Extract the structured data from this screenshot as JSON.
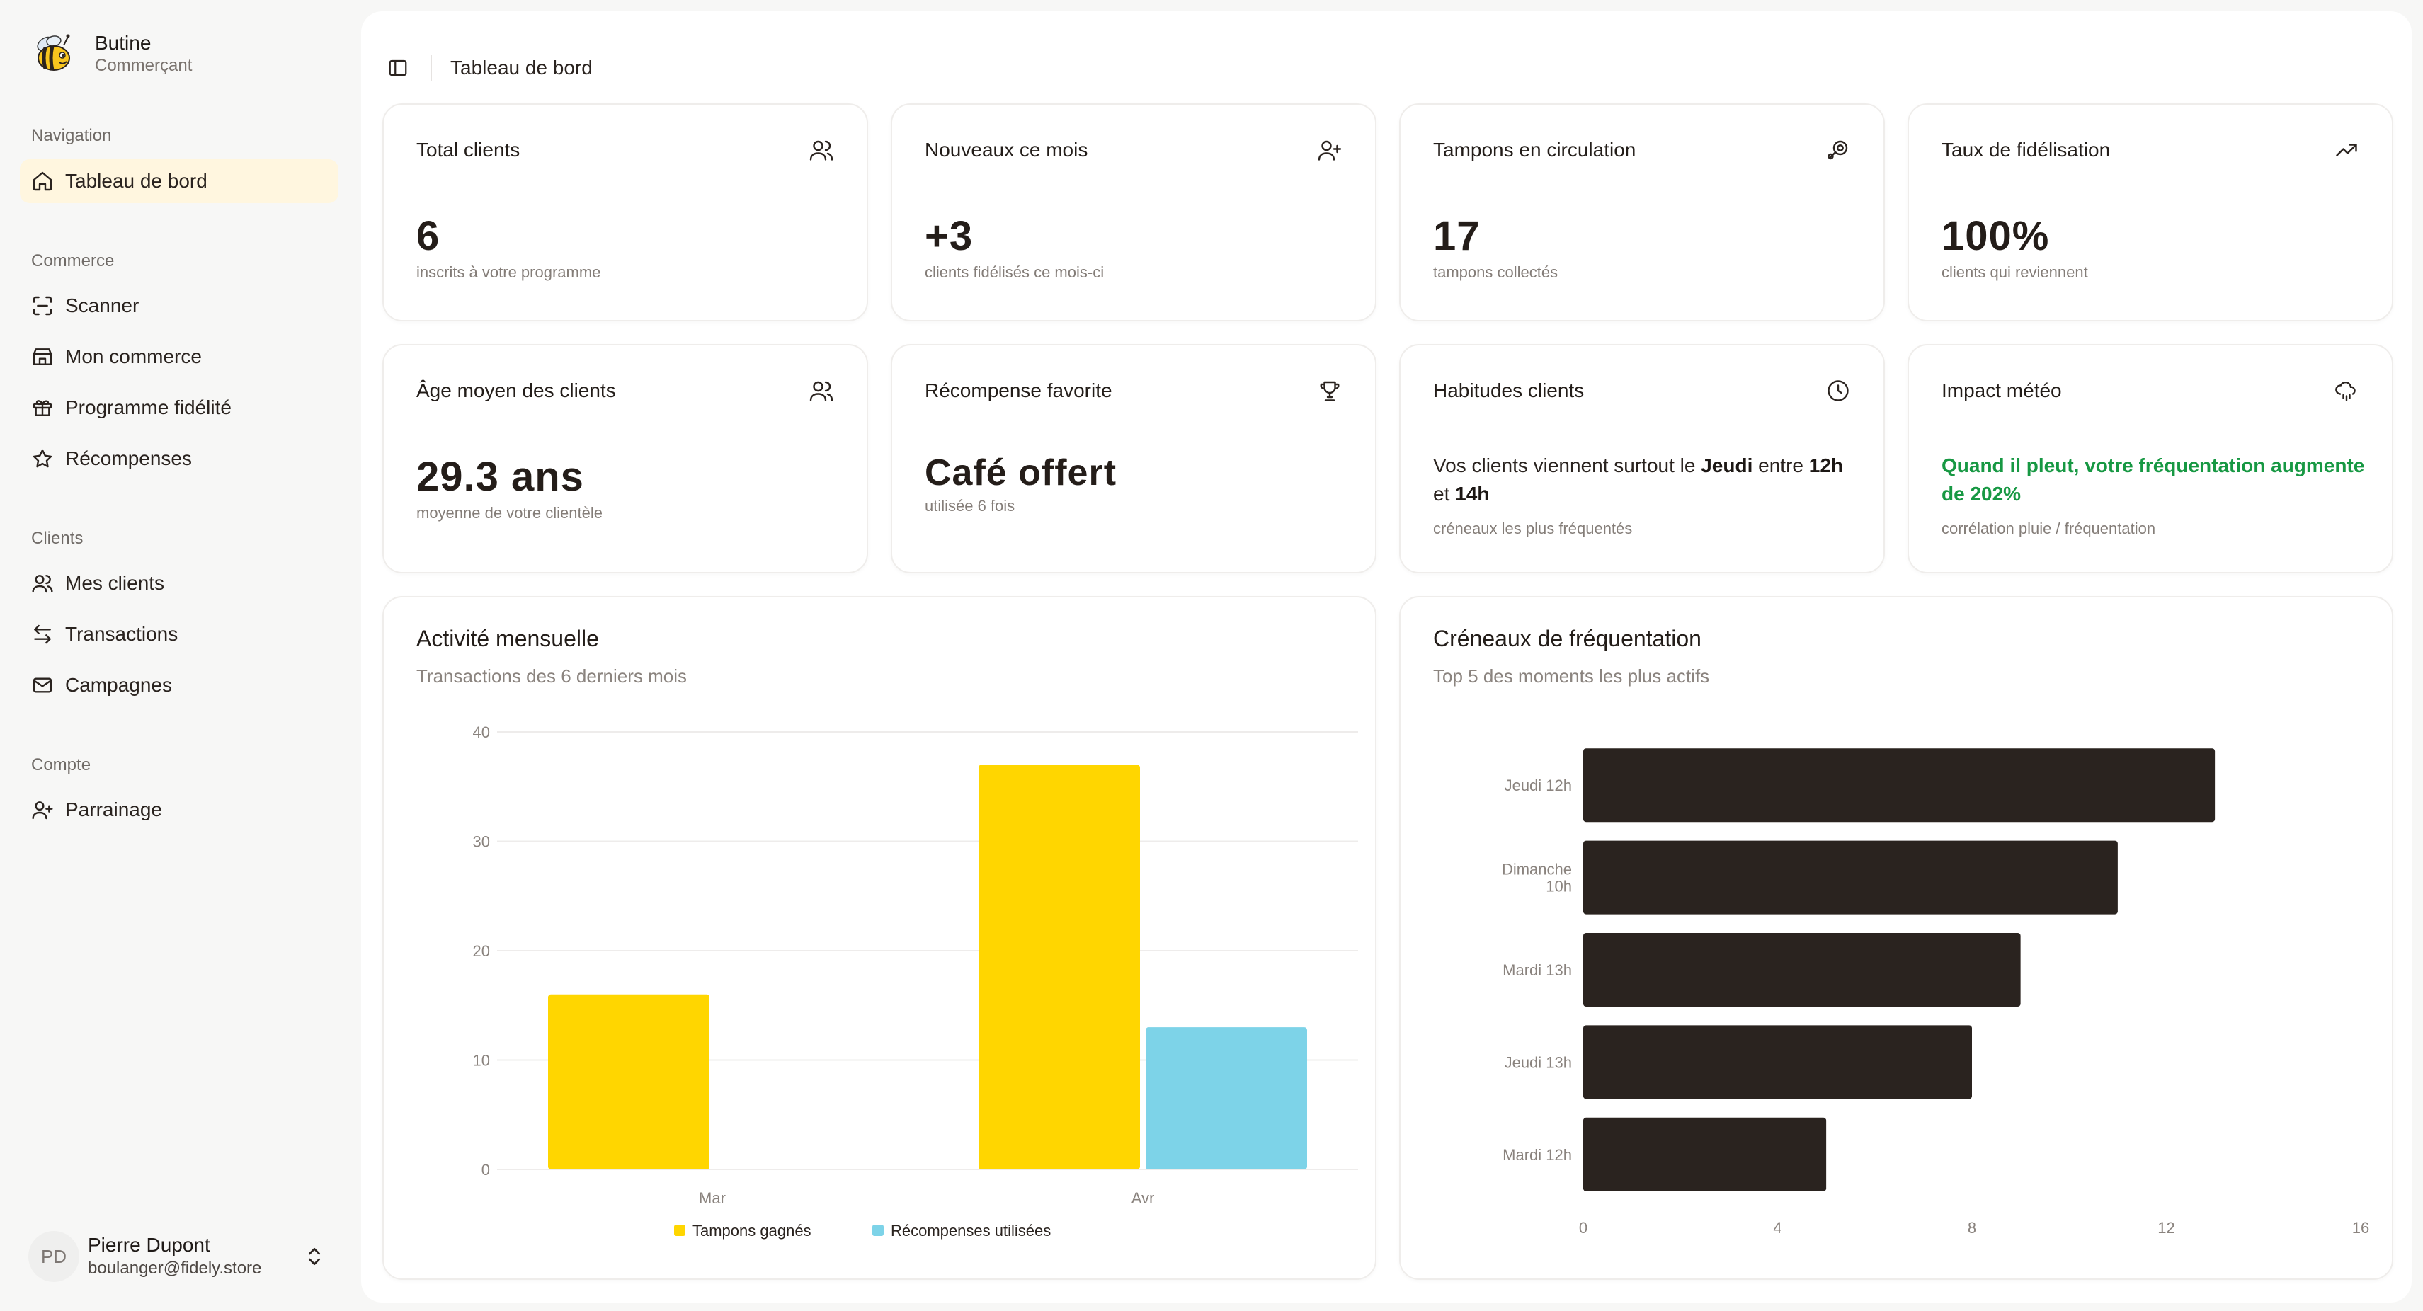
{
  "brand": {
    "name": "Butine",
    "subtitle": "Commerçant"
  },
  "sidebar": {
    "sections": [
      {
        "label": "Navigation",
        "items": [
          {
            "label": "Tableau de bord",
            "icon": "home-icon",
            "active": true
          }
        ]
      },
      {
        "label": "Commerce",
        "items": [
          {
            "label": "Scanner",
            "icon": "scan-icon"
          },
          {
            "label": "Mon commerce",
            "icon": "store-icon"
          },
          {
            "label": "Programme fidélité",
            "icon": "gift-icon"
          },
          {
            "label": "Récompenses",
            "icon": "star-icon"
          }
        ]
      },
      {
        "label": "Clients",
        "items": [
          {
            "label": "Mes clients",
            "icon": "users-icon"
          },
          {
            "label": "Transactions",
            "icon": "arrows-icon"
          },
          {
            "label": "Campagnes",
            "icon": "mail-icon"
          }
        ]
      },
      {
        "label": "Compte",
        "items": [
          {
            "label": "Parrainage",
            "icon": "user-plus-icon"
          }
        ]
      }
    ]
  },
  "user": {
    "initials": "PD",
    "name": "Pierre Dupont",
    "email": "boulanger@fidely.store"
  },
  "header": {
    "breadcrumb": "Tableau de bord"
  },
  "stats": [
    {
      "title": "Total clients",
      "value": "6",
      "note": "inscrits à votre programme",
      "icon": "users-icon"
    },
    {
      "title": "Nouveaux ce mois",
      "value": "+3",
      "note": "clients fidélisés ce mois-ci",
      "icon": "user-plus-icon"
    },
    {
      "title": "Tampons en circulation",
      "value": "17",
      "note": "tampons collectés",
      "icon": "stamp-icon"
    },
    {
      "title": "Taux de fidélisation",
      "value": "100%",
      "note": "clients qui reviennent",
      "icon": "trend-up-icon"
    },
    {
      "title": "Âge moyen des clients",
      "value": "29.3 ans",
      "note": "moyenne de votre clientèle",
      "icon": "users-icon"
    },
    {
      "title": "Récompense favorite",
      "value": "Café offert",
      "note": "utilisée 6 fois",
      "icon": "trophy-icon"
    }
  ],
  "habits": {
    "title": "Habitudes clients",
    "icon": "clock-icon",
    "text_1": "Vos clients viennent surtout le ",
    "day": "Jeudi",
    "text_2": " entre ",
    "hour_1": "12h",
    "text_3": " et ",
    "hour_2": "14h",
    "note": "créneaux les plus fréquentés"
  },
  "weather": {
    "title": "Impact météo",
    "icon": "cloud-rain-icon",
    "text": "Quand il pleut, votre fréquentation augmente de 202%",
    "note": "corrélation pluie / fréquentation",
    "accent": "#179843"
  },
  "colors": {
    "primary": "#ffd600",
    "secondary": "#7dd3e8",
    "dark": "#2a231f",
    "active_bg": "#fff6df"
  },
  "charts": {
    "monthly": {
      "title": "Activité mensuelle",
      "subtitle": "Transactions des 6 derniers mois"
    },
    "slots": {
      "title": "Créneaux de fréquentation",
      "subtitle": "Top 5 des moments les plus actifs"
    }
  },
  "chart_data": [
    {
      "type": "bar",
      "title": "Activité mensuelle",
      "subtitle": "Transactions des 6 derniers mois",
      "categories": [
        "Mar",
        "Avr"
      ],
      "series": [
        {
          "name": "Tampons gagnés",
          "values": [
            16,
            37
          ],
          "color": "#ffd600"
        },
        {
          "name": "Récompenses utilisées",
          "values": [
            0,
            13
          ],
          "color": "#7dd3e8"
        }
      ],
      "ylim": [
        0,
        40
      ],
      "yticks": [
        0,
        10,
        20,
        30,
        40
      ],
      "grid": true,
      "legend": "bottom"
    },
    {
      "type": "bar",
      "orientation": "horizontal",
      "title": "Créneaux de fréquentation",
      "subtitle": "Top 5 des moments les plus actifs",
      "categories": [
        [
          "Jeudi 12h"
        ],
        [
          "Dimanche",
          "10h"
        ],
        [
          "Mardi 13h"
        ],
        [
          "Jeudi 13h"
        ],
        [
          "Mardi 12h"
        ]
      ],
      "values": [
        13,
        11,
        9,
        8,
        5
      ],
      "xlim": [
        0,
        16
      ],
      "xticks": [
        0,
        4,
        8,
        12,
        16
      ],
      "color": "#2a231f",
      "grid": false
    }
  ]
}
